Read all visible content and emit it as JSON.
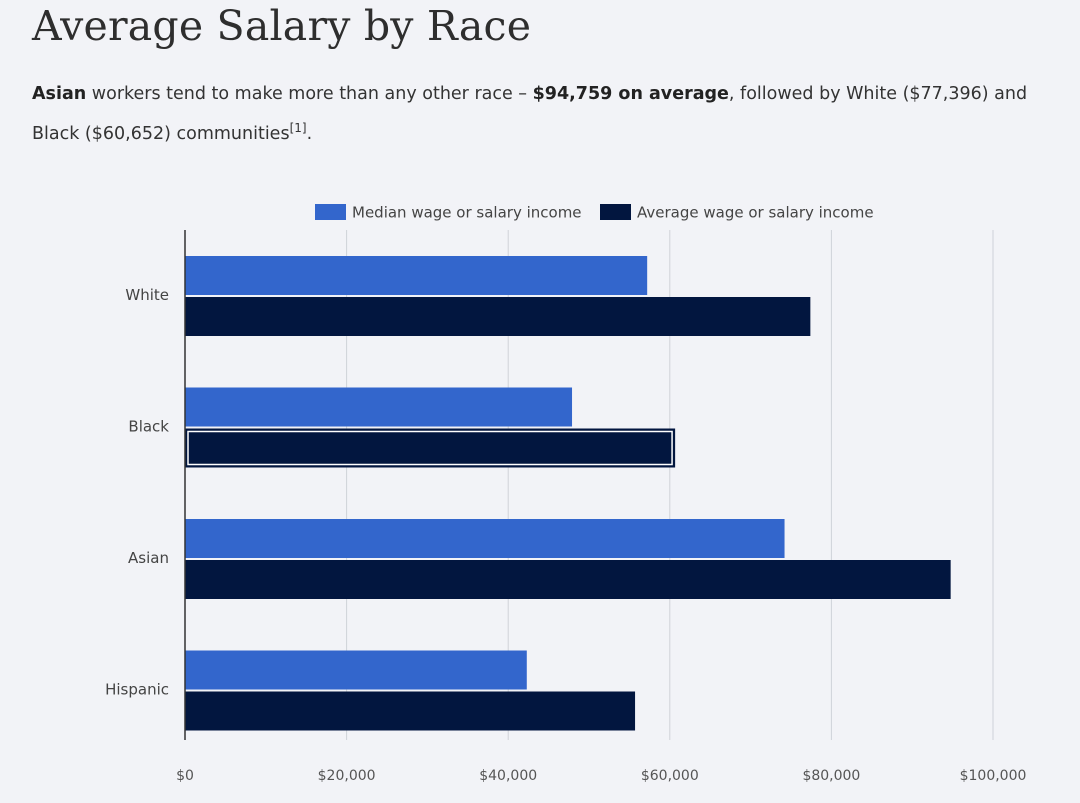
{
  "page": {
    "title": "Average Salary by Race",
    "summary": {
      "lead_bold": "Asian",
      "text_1": " workers tend to make more than any other race – ",
      "highlight_bold": "$94,759 on average",
      "text_2": ", followed by White ($77,396) and Black ($60,652) communities",
      "footnote": "[1]",
      "text_3": "."
    }
  },
  "chart_data": {
    "type": "bar",
    "orientation": "horizontal",
    "title": "",
    "xlabel": "",
    "ylabel": "",
    "categories": [
      "White",
      "Black",
      "Asian",
      "Hispanic"
    ],
    "series": [
      {
        "name": "Median wage or salary income",
        "color": "#3366cc",
        "values": [
          57200,
          47900,
          74200,
          42300
        ]
      },
      {
        "name": "Average wage or salary income",
        "color": "#02163f",
        "values": [
          77396,
          60652,
          94759,
          55700
        ]
      }
    ],
    "xlim": [
      0,
      100000
    ],
    "xticks": [
      0,
      20000,
      40000,
      60000,
      80000,
      100000
    ],
    "xtick_labels": [
      "$0",
      "$20,000",
      "$40,000",
      "$60,000",
      "$80,000",
      "$100,000"
    ],
    "grid": "vertical",
    "legend": "top",
    "highlighted": {
      "series": 1,
      "category": 1
    }
  }
}
